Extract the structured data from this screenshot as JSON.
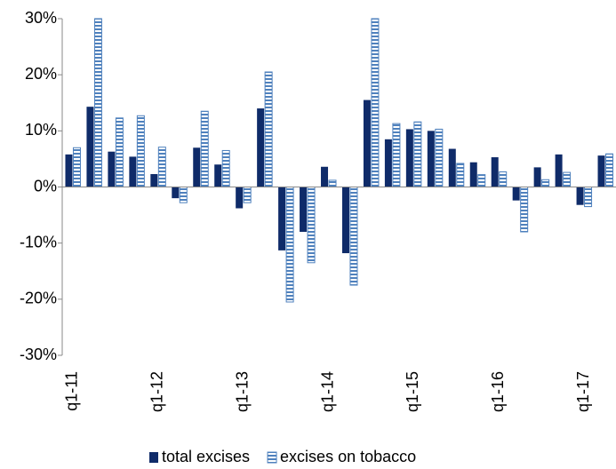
{
  "chart_data": {
    "type": "bar",
    "categories": [
      "q1-11",
      null,
      null,
      null,
      "q1-12",
      null,
      null,
      null,
      "q1-13",
      null,
      null,
      null,
      "q1-14",
      null,
      null,
      null,
      "q1-15",
      null,
      null,
      null,
      "q1-16",
      null,
      null,
      null,
      "q1-17",
      null
    ],
    "series": [
      {
        "name": "total excises",
        "color": "#0f2b69",
        "values": [
          5.8,
          14.3,
          6.3,
          5.4,
          2.3,
          -2.0,
          7.0,
          4.0,
          -3.8,
          14.0,
          -11.3,
          -8.0,
          3.6,
          -11.8,
          15.5,
          8.5,
          10.3,
          10.0,
          6.8,
          4.4,
          5.3,
          -2.4,
          3.5,
          5.8,
          -3.2,
          5.6
        ]
      },
      {
        "name": "excises on tobacco",
        "color": "#4f81bd",
        "values": [
          7.0,
          30,
          12.3,
          12.7,
          7.1,
          -2.8,
          13.5,
          6.5,
          -2.8,
          20.5,
          -20.5,
          -13.5,
          1.2,
          -17.5,
          30,
          11.3,
          11.6,
          10.3,
          4.2,
          2.2,
          2.7,
          -8.0,
          1.3,
          2.6,
          -3.5,
          5.9
        ]
      }
    ],
    "ylim": [
      -30,
      30
    ],
    "yticks": [
      {
        "value": -30,
        "label": "-30%"
      },
      {
        "value": -20,
        "label": "-20%"
      },
      {
        "value": -10,
        "label": "-10%"
      },
      {
        "value": 0,
        "label": "0%"
      },
      {
        "value": 10,
        "label": "10%"
      },
      {
        "value": 20,
        "label": "20%"
      },
      {
        "value": 30,
        "label": "30%"
      }
    ],
    "grid": false,
    "legend": "bottom"
  }
}
